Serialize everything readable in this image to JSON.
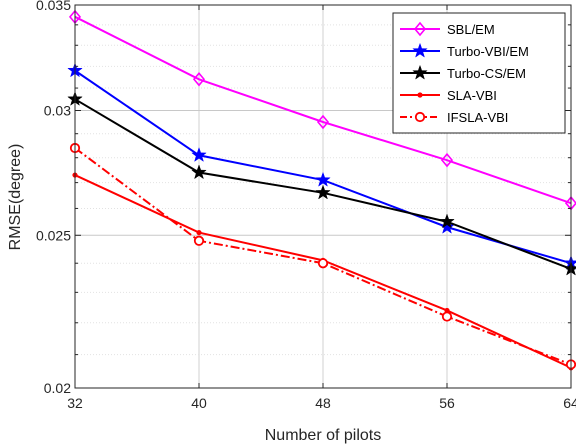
{
  "chart_data": {
    "type": "line",
    "xlabel": "Number of pilots",
    "ylabel": "RMSE(degree)",
    "x": [
      32,
      40,
      48,
      56,
      64
    ],
    "xlim": [
      32,
      64
    ],
    "ylim": [
      0.02,
      0.035
    ],
    "ylog": true,
    "xticks": [
      "32",
      "40",
      "48",
      "56",
      "64"
    ],
    "yticks": [
      {
        "value": 0.02,
        "label": "0.02"
      },
      {
        "value": 0.025,
        "label": "0.025"
      },
      {
        "value": 0.03,
        "label": "0.03"
      },
      {
        "value": 0.035,
        "label": "0.035"
      }
    ],
    "grid": true,
    "legend_position": "top-right",
    "series": [
      {
        "name": "SBL/EM",
        "color": "#ff00ff",
        "marker": "diamond",
        "dash": "solid",
        "values": [
          0.0344,
          0.0314,
          0.0295,
          0.0279,
          0.0262
        ]
      },
      {
        "name": "Turbo-VBI/EM",
        "color": "#0000ff",
        "marker": "star",
        "dash": "solid",
        "values": [
          0.0318,
          0.0281,
          0.0271,
          0.0253,
          0.024
        ]
      },
      {
        "name": "Turbo-CS/EM",
        "color": "#000000",
        "marker": "star",
        "dash": "solid",
        "values": [
          0.0305,
          0.0274,
          0.0266,
          0.0255,
          0.0238
        ]
      },
      {
        "name": "SLA-VBI",
        "color": "#ff0000",
        "marker": "dot",
        "dash": "solid",
        "values": [
          0.0273,
          0.0251,
          0.0241,
          0.0224,
          0.0206
        ]
      },
      {
        "name": "IFSLA-VBI",
        "color": "#ff0000",
        "marker": "circle",
        "dash": "dashdot",
        "values": [
          0.0284,
          0.0248,
          0.024,
          0.0222,
          0.0207
        ]
      }
    ]
  }
}
